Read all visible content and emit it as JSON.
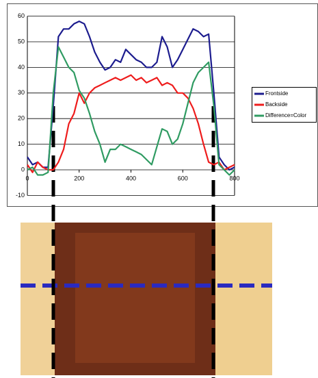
{
  "chart_data": {
    "type": "line",
    "x": [
      0,
      20,
      40,
      60,
      80,
      100,
      120,
      140,
      160,
      180,
      200,
      220,
      240,
      260,
      280,
      300,
      320,
      340,
      360,
      380,
      400,
      420,
      440,
      460,
      480,
      500,
      520,
      540,
      560,
      580,
      600,
      620,
      640,
      660,
      680,
      700,
      720,
      740,
      760,
      780,
      800
    ],
    "series": [
      {
        "name": "Frontside",
        "color": "#1c1c8e",
        "values": [
          5,
          2,
          3,
          1,
          1,
          25,
          52,
          55,
          55,
          57,
          58,
          57,
          52,
          46,
          42,
          39,
          40,
          43,
          42,
          47,
          45,
          43,
          42,
          40,
          40,
          42,
          52,
          48,
          40,
          43,
          47,
          51,
          55,
          54,
          52,
          53,
          30,
          5,
          2,
          0,
          1
        ]
      },
      {
        "name": "Backside",
        "color": "#ee1c1c",
        "values": [
          2,
          -1,
          3,
          1,
          0,
          0,
          3,
          8,
          18,
          22,
          30,
          26,
          30,
          32,
          33,
          34,
          35,
          36,
          35,
          36,
          37,
          35,
          36,
          34,
          35,
          36,
          33,
          34,
          33,
          30,
          30,
          28,
          24,
          18,
          10,
          3,
          2,
          3,
          0,
          1,
          2
        ]
      },
      {
        "name": "Difference=Color",
        "color": "#2f9b62",
        "values": [
          0,
          1,
          -2,
          -2,
          -1,
          30,
          48,
          44,
          40,
          38,
          31,
          28,
          22,
          15,
          10,
          3,
          8,
          8,
          10,
          9,
          8,
          7,
          6,
          4,
          2,
          9,
          16,
          15,
          10,
          12,
          18,
          26,
          34,
          38,
          40,
          42,
          25,
          2,
          0,
          -2,
          0
        ]
      }
    ],
    "xlim": [
      0,
      800
    ],
    "xticks": [
      0,
      200,
      400,
      600,
      800
    ],
    "ylim": [
      -10,
      60
    ],
    "yticks": [
      -10,
      0,
      10,
      20,
      30,
      40,
      50,
      60
    ],
    "grid": true,
    "legend": "right"
  }
}
